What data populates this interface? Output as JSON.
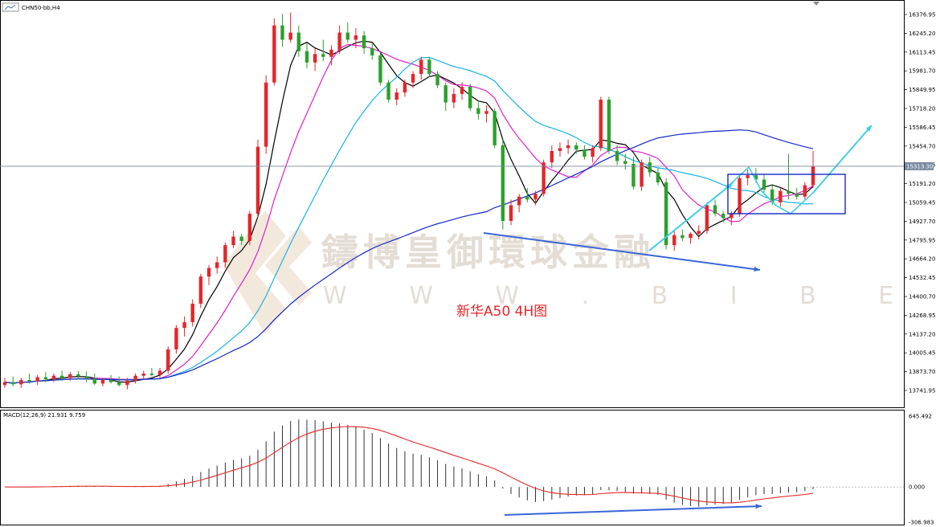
{
  "chart_data": {
    "type": "candlestick",
    "symbol_label": "CHN50-bb,H4",
    "annotation": "新华A50 4H图",
    "watermark": {
      "title": "鑄博皇御環球金融",
      "url": "W W W . B I B E X . N E T"
    },
    "price_axis": {
      "ticks": [
        "16376.95",
        "16245.20",
        "16113.45",
        "15981.70",
        "15849.95",
        "15718.20",
        "15586.45",
        "15454.70",
        "15322.95",
        "15191.20",
        "15059.45",
        "14927.70",
        "14795.95",
        "14664.20",
        "14532.45",
        "14400.70",
        "14268.95",
        "14137.20",
        "14005.45",
        "13873.70",
        "13741.95"
      ],
      "ylim": [
        13690,
        16420
      ],
      "current_price": 15313.3,
      "current_price_label": "15313.30"
    },
    "macd": {
      "label": "MACD(12,26,9) 21.931 9.759",
      "ticks": [
        "645.492",
        "0.000",
        "-306.983"
      ],
      "ylim": [
        -306.983,
        645.492
      ]
    },
    "ohlc_approx": [
      {
        "o": 13780,
        "h": 13830,
        "l": 13760,
        "c": 13800
      },
      {
        "o": 13800,
        "h": 13840,
        "l": 13770,
        "c": 13785
      },
      {
        "o": 13785,
        "h": 13830,
        "l": 13760,
        "c": 13815
      },
      {
        "o": 13815,
        "h": 13860,
        "l": 13790,
        "c": 13805
      },
      {
        "o": 13805,
        "h": 13850,
        "l": 13780,
        "c": 13835
      },
      {
        "o": 13835,
        "h": 13870,
        "l": 13800,
        "c": 13820
      },
      {
        "o": 13820,
        "h": 13860,
        "l": 13800,
        "c": 13845
      },
      {
        "o": 13845,
        "h": 13880,
        "l": 13820,
        "c": 13830
      },
      {
        "o": 13830,
        "h": 13870,
        "l": 13810,
        "c": 13855
      },
      {
        "o": 13855,
        "h": 13880,
        "l": 13820,
        "c": 13840
      },
      {
        "o": 13840,
        "h": 13875,
        "l": 13800,
        "c": 13825
      },
      {
        "o": 13825,
        "h": 13860,
        "l": 13780,
        "c": 13790
      },
      {
        "o": 13790,
        "h": 13830,
        "l": 13770,
        "c": 13815
      },
      {
        "o": 13815,
        "h": 13850,
        "l": 13790,
        "c": 13800
      },
      {
        "o": 13800,
        "h": 13840,
        "l": 13770,
        "c": 13780
      },
      {
        "o": 13780,
        "h": 13830,
        "l": 13750,
        "c": 13810
      },
      {
        "o": 13810,
        "h": 13860,
        "l": 13790,
        "c": 13845
      },
      {
        "o": 13845,
        "h": 13880,
        "l": 13820,
        "c": 13860
      },
      {
        "o": 13860,
        "h": 13900,
        "l": 13840,
        "c": 13850
      },
      {
        "o": 13850,
        "h": 13900,
        "l": 13830,
        "c": 13880
      },
      {
        "o": 13880,
        "h": 14050,
        "l": 13860,
        "c": 14030
      },
      {
        "o": 14030,
        "h": 14200,
        "l": 14000,
        "c": 14180
      },
      {
        "o": 14180,
        "h": 14260,
        "l": 14120,
        "c": 14220
      },
      {
        "o": 14220,
        "h": 14380,
        "l": 14190,
        "c": 14350
      },
      {
        "o": 14350,
        "h": 14560,
        "l": 14320,
        "c": 14540
      },
      {
        "o": 14540,
        "h": 14620,
        "l": 14480,
        "c": 14600
      },
      {
        "o": 14600,
        "h": 14680,
        "l": 14560,
        "c": 14640
      },
      {
        "o": 14640,
        "h": 14780,
        "l": 14600,
        "c": 14760
      },
      {
        "o": 14760,
        "h": 14860,
        "l": 14740,
        "c": 14820
      },
      {
        "o": 14820,
        "h": 14840,
        "l": 14760,
        "c": 14790
      },
      {
        "o": 14790,
        "h": 15000,
        "l": 14760,
        "c": 14980
      },
      {
        "o": 14980,
        "h": 15500,
        "l": 14950,
        "c": 15450
      },
      {
        "o": 15450,
        "h": 15950,
        "l": 15400,
        "c": 15900
      },
      {
        "o": 15900,
        "h": 16350,
        "l": 15880,
        "c": 16300
      },
      {
        "o": 16300,
        "h": 16380,
        "l": 16150,
        "c": 16200
      },
      {
        "o": 16200,
        "h": 16390,
        "l": 16180,
        "c": 16250
      },
      {
        "o": 16250,
        "h": 16300,
        "l": 16080,
        "c": 16120
      },
      {
        "o": 16120,
        "h": 16180,
        "l": 16000,
        "c": 16040
      },
      {
        "o": 16040,
        "h": 16140,
        "l": 15980,
        "c": 16100
      },
      {
        "o": 16100,
        "h": 16200,
        "l": 16050,
        "c": 16080
      },
      {
        "o": 16080,
        "h": 16160,
        "l": 16020,
        "c": 16130
      },
      {
        "o": 16130,
        "h": 16300,
        "l": 16100,
        "c": 16250
      },
      {
        "o": 16250,
        "h": 16320,
        "l": 16180,
        "c": 16200
      },
      {
        "o": 16200,
        "h": 16280,
        "l": 16140,
        "c": 16230
      },
      {
        "o": 16230,
        "h": 16260,
        "l": 16100,
        "c": 16140
      },
      {
        "o": 16140,
        "h": 16180,
        "l": 16060,
        "c": 16090
      },
      {
        "o": 16090,
        "h": 16120,
        "l": 15880,
        "c": 15900
      },
      {
        "o": 15900,
        "h": 15920,
        "l": 15760,
        "c": 15780
      },
      {
        "o": 15780,
        "h": 15860,
        "l": 15740,
        "c": 15830
      },
      {
        "o": 15830,
        "h": 15920,
        "l": 15800,
        "c": 15900
      },
      {
        "o": 15900,
        "h": 15980,
        "l": 15860,
        "c": 15960
      },
      {
        "o": 15960,
        "h": 16080,
        "l": 15920,
        "c": 16060
      },
      {
        "o": 16060,
        "h": 16080,
        "l": 15940,
        "c": 15960
      },
      {
        "o": 15960,
        "h": 15980,
        "l": 15860,
        "c": 15880
      },
      {
        "o": 15880,
        "h": 15900,
        "l": 15700,
        "c": 15760
      },
      {
        "o": 15760,
        "h": 15860,
        "l": 15720,
        "c": 15820
      },
      {
        "o": 15820,
        "h": 15900,
        "l": 15780,
        "c": 15870
      },
      {
        "o": 15870,
        "h": 15890,
        "l": 15700,
        "c": 15720
      },
      {
        "o": 15720,
        "h": 15760,
        "l": 15640,
        "c": 15680
      },
      {
        "o": 15680,
        "h": 15740,
        "l": 15620,
        "c": 15700
      },
      {
        "o": 15700,
        "h": 15720,
        "l": 15440,
        "c": 15460
      },
      {
        "o": 15460,
        "h": 15500,
        "l": 14870,
        "c": 14930
      },
      {
        "o": 14930,
        "h": 15080,
        "l": 14900,
        "c": 15040
      },
      {
        "o": 15040,
        "h": 15120,
        "l": 14990,
        "c": 15100
      },
      {
        "o": 15100,
        "h": 15160,
        "l": 15060,
        "c": 15080
      },
      {
        "o": 15080,
        "h": 15140,
        "l": 15040,
        "c": 15120
      },
      {
        "o": 15120,
        "h": 15360,
        "l": 15100,
        "c": 15340
      },
      {
        "o": 15340,
        "h": 15460,
        "l": 15300,
        "c": 15420
      },
      {
        "o": 15420,
        "h": 15480,
        "l": 15380,
        "c": 15440
      },
      {
        "o": 15440,
        "h": 15500,
        "l": 15400,
        "c": 15460
      },
      {
        "o": 15460,
        "h": 15480,
        "l": 15400,
        "c": 15430
      },
      {
        "o": 15430,
        "h": 15460,
        "l": 15360,
        "c": 15380
      },
      {
        "o": 15380,
        "h": 15460,
        "l": 15340,
        "c": 15440
      },
      {
        "o": 15440,
        "h": 15800,
        "l": 15420,
        "c": 15780
      },
      {
        "o": 15780,
        "h": 15800,
        "l": 15400,
        "c": 15420
      },
      {
        "o": 15420,
        "h": 15460,
        "l": 15320,
        "c": 15350
      },
      {
        "o": 15350,
        "h": 15400,
        "l": 15290,
        "c": 15330
      },
      {
        "o": 15330,
        "h": 15380,
        "l": 15150,
        "c": 15170
      },
      {
        "o": 15170,
        "h": 15360,
        "l": 15140,
        "c": 15340
      },
      {
        "o": 15340,
        "h": 15380,
        "l": 15240,
        "c": 15270
      },
      {
        "o": 15270,
        "h": 15300,
        "l": 15180,
        "c": 15200
      },
      {
        "o": 15200,
        "h": 15230,
        "l": 14730,
        "c": 14760
      },
      {
        "o": 14760,
        "h": 14860,
        "l": 14720,
        "c": 14830
      },
      {
        "o": 14830,
        "h": 14870,
        "l": 14790,
        "c": 14810
      },
      {
        "o": 14810,
        "h": 14850,
        "l": 14770,
        "c": 14840
      },
      {
        "o": 14840,
        "h": 14900,
        "l": 14800,
        "c": 14860
      },
      {
        "o": 14860,
        "h": 15060,
        "l": 14840,
        "c": 15040
      },
      {
        "o": 15040,
        "h": 15080,
        "l": 14960,
        "c": 14980
      },
      {
        "o": 14980,
        "h": 15000,
        "l": 14920,
        "c": 14950
      },
      {
        "o": 14950,
        "h": 15000,
        "l": 14900,
        "c": 14980
      },
      {
        "o": 14980,
        "h": 15250,
        "l": 14960,
        "c": 15230
      },
      {
        "o": 15230,
        "h": 15290,
        "l": 15180,
        "c": 15250
      },
      {
        "o": 15250,
        "h": 15300,
        "l": 15200,
        "c": 15220
      },
      {
        "o": 15220,
        "h": 15260,
        "l": 15130,
        "c": 15150
      },
      {
        "o": 15150,
        "h": 15180,
        "l": 15040,
        "c": 15060
      },
      {
        "o": 15060,
        "h": 15160,
        "l": 15030,
        "c": 15140
      },
      {
        "o": 15140,
        "h": 15400,
        "l": 15080,
        "c": 15120
      },
      {
        "o": 15120,
        "h": 15160,
        "l": 15080,
        "c": 15100
      },
      {
        "o": 15100,
        "h": 15200,
        "l": 15080,
        "c": 15180
      },
      {
        "o": 15180,
        "h": 15420,
        "l": 15160,
        "c": 15313
      }
    ]
  }
}
